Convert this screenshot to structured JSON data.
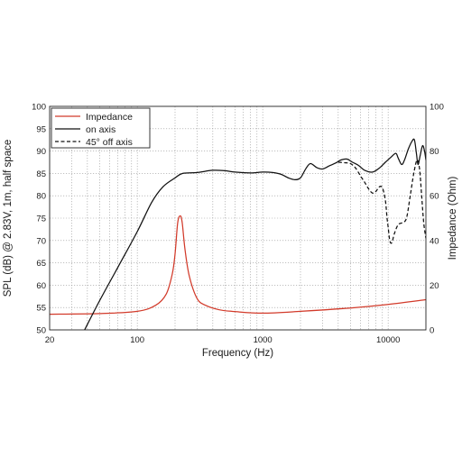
{
  "chart_data": {
    "type": "line",
    "xlabel": "Frequency (Hz)",
    "ylabel_left": "SPL (dB) @ 2.83V, 1m, half space",
    "ylabel_right": "Impedance (Ohm)",
    "x_scale": "log",
    "xlim": [
      20,
      20000
    ],
    "ylim_left": [
      50,
      100
    ],
    "ylim_right": [
      0,
      100
    ],
    "x_tick_labels": [
      "20",
      "100",
      "1000",
      "10000"
    ],
    "y_left_tick_labels": [
      "50",
      "55",
      "60",
      "65",
      "70",
      "75",
      "80",
      "85",
      "90",
      "95",
      "100"
    ],
    "y_right_tick_labels": [
      "0",
      "20",
      "40",
      "60",
      "80",
      "100"
    ],
    "grid": true,
    "legend_placement": "top-left",
    "series": [
      {
        "name": "Impedance",
        "axis": "right",
        "color": "#d23a2a",
        "dash": "solid",
        "points": [
          [
            20,
            7
          ],
          [
            50,
            7.3
          ],
          [
            100,
            8.3
          ],
          [
            140,
            11
          ],
          [
            170,
            16
          ],
          [
            190,
            25
          ],
          [
            200,
            34
          ],
          [
            210,
            48
          ],
          [
            220,
            51
          ],
          [
            228,
            48
          ],
          [
            240,
            36
          ],
          [
            260,
            24
          ],
          [
            300,
            14
          ],
          [
            350,
            11
          ],
          [
            450,
            9
          ],
          [
            600,
            8.2
          ],
          [
            1000,
            7.5
          ],
          [
            2000,
            8.3
          ],
          [
            5000,
            9.8
          ],
          [
            10000,
            11.4
          ],
          [
            20000,
            13.5
          ]
        ]
      },
      {
        "name": "on axis",
        "axis": "left",
        "color": "#111111",
        "dash": "solid",
        "points": [
          [
            38,
            50
          ],
          [
            50,
            56.5
          ],
          [
            70,
            64
          ],
          [
            100,
            72
          ],
          [
            130,
            78.5
          ],
          [
            160,
            82
          ],
          [
            200,
            84
          ],
          [
            230,
            85
          ],
          [
            300,
            85.2
          ],
          [
            400,
            85.7
          ],
          [
            500,
            85.6
          ],
          [
            600,
            85.3
          ],
          [
            800,
            85.1
          ],
          [
            1000,
            85.3
          ],
          [
            1200,
            85.2
          ],
          [
            1400,
            84.8
          ],
          [
            1600,
            84
          ],
          [
            1800,
            83.6
          ],
          [
            2000,
            84
          ],
          [
            2200,
            86
          ],
          [
            2400,
            87.2
          ],
          [
            2700,
            86.3
          ],
          [
            3000,
            86
          ],
          [
            3400,
            86.7
          ],
          [
            3800,
            87.3
          ],
          [
            4200,
            88
          ],
          [
            4700,
            88.2
          ],
          [
            5200,
            87.5
          ],
          [
            5800,
            86.8
          ],
          [
            6500,
            85.7
          ],
          [
            7500,
            85.3
          ],
          [
            8500,
            86.2
          ],
          [
            9500,
            87.5
          ],
          [
            10500,
            88.6
          ],
          [
            11500,
            89.5
          ],
          [
            12000,
            88.5
          ],
          [
            12800,
            87
          ],
          [
            13500,
            88
          ],
          [
            14500,
            90.5
          ],
          [
            15500,
            92.2
          ],
          [
            16200,
            92.5
          ],
          [
            16800,
            89.5
          ],
          [
            17300,
            87
          ],
          [
            18000,
            89
          ],
          [
            18800,
            91.2
          ],
          [
            19500,
            90
          ],
          [
            20000,
            88
          ]
        ]
      },
      {
        "name": "45° off axis",
        "axis": "left",
        "color": "#111111",
        "dash": "dashed",
        "points": [
          [
            4000,
            87.5
          ],
          [
            4500,
            87.4
          ],
          [
            5000,
            87.2
          ],
          [
            5500,
            86.2
          ],
          [
            6000,
            84.5
          ],
          [
            6500,
            83
          ],
          [
            7000,
            81.5
          ],
          [
            7500,
            80.6
          ],
          [
            8000,
            81
          ],
          [
            8500,
            82
          ],
          [
            9000,
            81.8
          ],
          [
            9500,
            79
          ],
          [
            9800,
            75
          ],
          [
            10000,
            73
          ],
          [
            10300,
            70
          ],
          [
            10700,
            69.5
          ],
          [
            11200,
            71.5
          ],
          [
            12000,
            73.5
          ],
          [
            13000,
            74
          ],
          [
            14000,
            75
          ],
          [
            15000,
            80
          ],
          [
            16000,
            85
          ],
          [
            17000,
            88
          ],
          [
            17800,
            86
          ],
          [
            18500,
            80
          ],
          [
            19200,
            74
          ],
          [
            20000,
            70.5
          ]
        ]
      }
    ]
  }
}
